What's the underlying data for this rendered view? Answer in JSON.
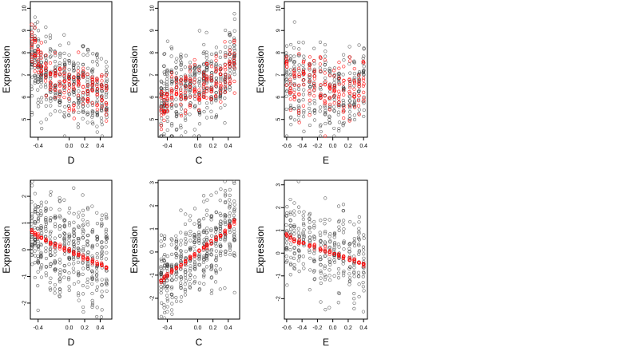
{
  "colors": {
    "points": "#333333",
    "fit": "#ff0000",
    "frame": "#000000",
    "background": "#ffffff"
  },
  "chart_data": [
    {
      "type": "scatter",
      "xlabel": "D",
      "ylabel": "Expression",
      "xlim": [
        -0.5,
        0.55
      ],
      "ylim": [
        4.2,
        10.3
      ],
      "xticks": [
        -0.4,
        0.0,
        0.2,
        0.4
      ],
      "xtick_labels": [
        "-0.4",
        "0.0",
        "0.2",
        "0.4"
      ],
      "yticks": [
        5,
        6,
        7,
        8,
        9,
        10
      ],
      "ytick_labels": [
        "5",
        "6",
        "7",
        "8",
        "9",
        "10"
      ],
      "x_levels": [
        -0.48,
        -0.44,
        -0.4,
        -0.36,
        -0.3,
        -0.24,
        -0.18,
        -0.12,
        -0.06,
        0.0,
        0.06,
        0.12,
        0.18,
        0.24,
        0.3,
        0.36,
        0.42,
        0.48
      ],
      "black_mean": [
        7.8,
        7.6,
        7.4,
        7.2,
        7.0,
        6.9,
        6.7,
        6.6,
        6.5,
        6.4,
        6.3,
        6.5,
        6.4,
        6.3,
        6.4,
        6.3,
        6.2,
        6.1
      ],
      "black_spread": 0.95,
      "black_per_level": 24,
      "red_mean": [
        8.6,
        8.1,
        7.7,
        7.4,
        7.1,
        6.9,
        6.7,
        6.6,
        6.4,
        6.3,
        6.2,
        6.8,
        6.5,
        6.2,
        6.3,
        6.2,
        6.1,
        6.0
      ],
      "red_spread": 0.5,
      "red_per_level": 10
    },
    {
      "type": "scatter",
      "xlabel": "C",
      "ylabel": "Expression",
      "xlim": [
        -0.52,
        0.55
      ],
      "ylim": [
        4.2,
        10.3
      ],
      "xticks": [
        -0.4,
        0.0,
        0.2,
        0.4
      ],
      "xtick_labels": [
        "-0.4",
        "0.0",
        "0.2",
        "0.4"
      ],
      "yticks": [
        5,
        6,
        7,
        8,
        9,
        10
      ],
      "ytick_labels": [
        "5",
        "6",
        "7",
        "8",
        "9",
        "10"
      ],
      "x_levels": [
        -0.48,
        -0.44,
        -0.4,
        -0.34,
        -0.28,
        -0.22,
        -0.16,
        -0.1,
        -0.04,
        0.02,
        0.08,
        0.12,
        0.18,
        0.24,
        0.3,
        0.36,
        0.42,
        0.48
      ],
      "black_mean": [
        5.8,
        5.9,
        6.0,
        6.0,
        6.1,
        6.2,
        6.4,
        6.5,
        6.5,
        6.4,
        6.7,
        7.2,
        6.8,
        6.9,
        7.0,
        7.3,
        7.6,
        7.9
      ],
      "black_spread": 0.9,
      "black_per_level": 24,
      "red_mean": [
        5.8,
        5.8,
        5.9,
        6.0,
        6.0,
        6.1,
        6.3,
        6.3,
        6.3,
        6.2,
        6.5,
        7.0,
        6.5,
        6.6,
        6.8,
        7.1,
        7.3,
        7.7
      ],
      "red_spread": 0.5,
      "red_per_level": 10
    },
    {
      "type": "scatter",
      "xlabel": "E",
      "ylabel": "Expression",
      "xlim": [
        -0.63,
        0.45
      ],
      "ylim": [
        4.2,
        10.3
      ],
      "xticks": [
        -0.6,
        -0.4,
        -0.2,
        0.0,
        0.2,
        0.4
      ],
      "xtick_labels": [
        "-0.6",
        "-0.4",
        "-0.2",
        "0.0",
        "0.2",
        "0.4"
      ],
      "yticks": [
        5,
        6,
        7,
        8,
        9,
        10
      ],
      "ytick_labels": [
        "5",
        "6",
        "7",
        "8",
        "9",
        "10"
      ],
      "x_levels": [
        -0.6,
        -0.55,
        -0.5,
        -0.44,
        -0.38,
        -0.3,
        -0.24,
        -0.16,
        -0.1,
        -0.04,
        0.02,
        0.08,
        0.14,
        0.22,
        0.28,
        0.34,
        0.4
      ],
      "black_mean": [
        7.0,
        6.8,
        6.7,
        6.6,
        6.5,
        6.4,
        6.5,
        6.4,
        6.3,
        6.2,
        6.3,
        6.2,
        6.1,
        6.3,
        6.2,
        6.1,
        6.6
      ],
      "black_spread": 1.0,
      "black_per_level": 18,
      "red_mean": [
        7.4,
        6.9,
        6.8,
        6.7,
        6.6,
        6.6,
        6.7,
        6.6,
        6.5,
        6.4,
        6.5,
        6.3,
        6.3,
        6.4,
        6.3,
        6.2,
        7.0
      ],
      "red_spread": 0.6,
      "red_per_level": 10
    },
    {
      "type": "scatter",
      "xlabel": "D",
      "ylabel": "Expression",
      "xlim": [
        -0.5,
        0.55
      ],
      "ylim": [
        -2.6,
        2.6
      ],
      "xticks": [
        -0.4,
        0.0,
        0.2,
        0.4
      ],
      "xtick_labels": [
        "-0.4",
        "0.0",
        "0.2",
        "0.4"
      ],
      "yticks": [
        -2,
        -1,
        0,
        1,
        2
      ],
      "ytick_labels": [
        "-2",
        "-1",
        "0",
        "1",
        "2"
      ],
      "x_levels": [
        -0.48,
        -0.44,
        -0.4,
        -0.36,
        -0.3,
        -0.24,
        -0.18,
        -0.12,
        -0.06,
        0.0,
        0.06,
        0.12,
        0.18,
        0.24,
        0.3,
        0.36,
        0.42,
        0.48
      ],
      "black_mean": [
        0.7,
        0.6,
        0.5,
        0.45,
        0.35,
        0.25,
        0.15,
        0.1,
        0.05,
        0.0,
        -0.05,
        -0.1,
        -0.2,
        -0.3,
        -0.35,
        -0.45,
        -0.5,
        -0.6
      ],
      "black_spread": 0.9,
      "black_per_level": 24,
      "red_mean": [
        0.7,
        0.6,
        0.52,
        0.44,
        0.34,
        0.25,
        0.17,
        0.09,
        0.02,
        -0.05,
        -0.12,
        -0.19,
        -0.27,
        -0.35,
        -0.43,
        -0.51,
        -0.59,
        -0.67
      ],
      "red_spread": 0.04,
      "red_per_level": 5
    },
    {
      "type": "scatter",
      "xlabel": "C",
      "ylabel": "Expression",
      "xlim": [
        -0.52,
        0.55
      ],
      "ylim": [
        -2.9,
        3.1
      ],
      "xticks": [
        -0.4,
        0.0,
        0.2,
        0.4
      ],
      "xtick_labels": [
        "-0.4",
        "0.0",
        "0.2",
        "0.4"
      ],
      "yticks": [
        -2,
        -1,
        0,
        1,
        2,
        3
      ],
      "ytick_labels": [
        "-2",
        "-1",
        "0",
        "1",
        "2",
        "3"
      ],
      "x_levels": [
        -0.48,
        -0.44,
        -0.4,
        -0.34,
        -0.28,
        -0.22,
        -0.16,
        -0.1,
        -0.04,
        0.02,
        0.08,
        0.12,
        0.18,
        0.24,
        0.3,
        0.36,
        0.42,
        0.48
      ],
      "black_mean": [
        -1.2,
        -1.1,
        -1.0,
        -0.85,
        -0.7,
        -0.55,
        -0.4,
        -0.25,
        -0.1,
        0.05,
        0.25,
        0.35,
        0.5,
        0.65,
        0.8,
        0.95,
        1.15,
        1.3
      ],
      "black_spread": 0.9,
      "black_per_level": 24,
      "red_mean": [
        -1.25,
        -1.12,
        -1.0,
        -0.85,
        -0.7,
        -0.56,
        -0.42,
        -0.27,
        -0.12,
        0.03,
        0.18,
        0.28,
        0.43,
        0.57,
        0.72,
        0.87,
        1.05,
        1.3
      ],
      "red_spread": 0.05,
      "red_per_level": 5
    },
    {
      "type": "scatter",
      "xlabel": "E",
      "ylabel": "Expression",
      "xlim": [
        -0.63,
        0.45
      ],
      "ylim": [
        -2.9,
        3.2
      ],
      "xticks": [
        -0.6,
        -0.4,
        -0.2,
        0.0,
        0.2,
        0.4
      ],
      "xtick_labels": [
        "-0.6",
        "-0.4",
        "-0.2",
        "0.0",
        "0.2",
        "0.4"
      ],
      "yticks": [
        -2,
        -1,
        0,
        1,
        2,
        3
      ],
      "ytick_labels": [
        "-2",
        "-1",
        "0",
        "1",
        "2",
        "3"
      ],
      "x_levels": [
        -0.6,
        -0.55,
        -0.5,
        -0.44,
        -0.38,
        -0.3,
        -0.24,
        -0.16,
        -0.1,
        -0.04,
        0.02,
        0.08,
        0.14,
        0.22,
        0.28,
        0.34,
        0.4
      ],
      "black_mean": [
        0.8,
        0.7,
        0.6,
        0.5,
        0.45,
        0.35,
        0.3,
        0.2,
        0.15,
        0.05,
        0.0,
        -0.1,
        -0.15,
        -0.25,
        -0.3,
        -0.35,
        -0.5
      ],
      "black_spread": 0.9,
      "black_per_level": 18,
      "red_mean": [
        0.8,
        0.66,
        0.58,
        0.5,
        0.43,
        0.35,
        0.28,
        0.18,
        0.12,
        0.05,
        -0.03,
        -0.1,
        -0.17,
        -0.27,
        -0.34,
        -0.41,
        -0.5
      ],
      "red_spread": 0.05,
      "red_per_level": 5
    }
  ]
}
